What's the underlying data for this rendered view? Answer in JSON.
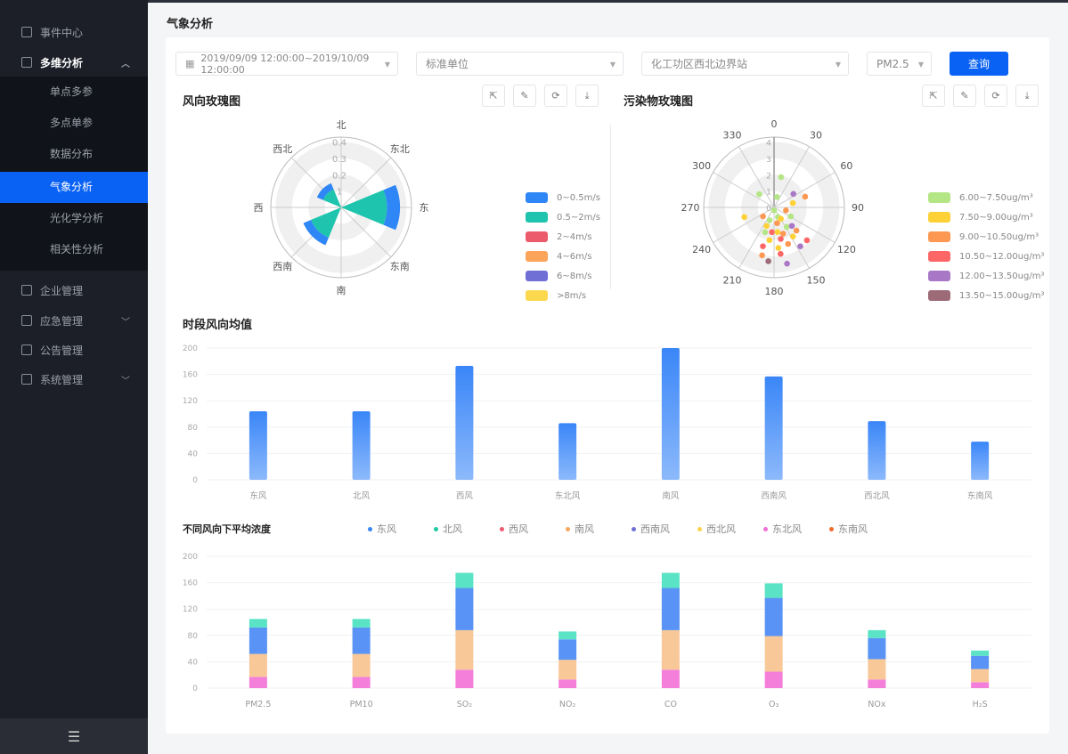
{
  "sidebar": {
    "items": [
      {
        "label": "事件中心",
        "icon": "document-icon"
      },
      {
        "label": "多维分析",
        "icon": "monitor-icon",
        "expanded": true
      }
    ],
    "submenu": [
      {
        "label": "单点多参"
      },
      {
        "label": "多点单参"
      },
      {
        "label": "数据分布"
      },
      {
        "label": "气象分析",
        "active": true
      },
      {
        "label": "光化学分析"
      },
      {
        "label": "相关性分析"
      }
    ],
    "items2": [
      {
        "label": "企业管理",
        "icon": "building-icon"
      },
      {
        "label": "应急管理",
        "icon": "database-icon",
        "chevron": true
      },
      {
        "label": "公告管理",
        "icon": "notice-icon"
      },
      {
        "label": "系统管理",
        "icon": "grid-icon",
        "chevron": true
      }
    ],
    "collapse_icon": "menu-fold-icon"
  },
  "page": {
    "title": "气象分析"
  },
  "filters": {
    "date_range": "2019/09/09 12:00:00~2019/10/09 12:00:00",
    "unit": "标准单位",
    "station": "化工功区西北边界站",
    "pollutant": "PM2.5",
    "query_label": "查询"
  },
  "colors": {
    "accent": "#0a62f5",
    "sidebar": "#1c1f27"
  },
  "toolbar_icons": [
    "external-link-icon",
    "edit-icon",
    "refresh-icon",
    "download-icon"
  ],
  "chart_data": [
    {
      "type": "polar-bar",
      "title": "风向玫瑰图",
      "directions": [
        "北",
        "东北",
        "东",
        "东南",
        "南",
        "西南",
        "西",
        "西北"
      ],
      "radial_ticks": [
        "0.4",
        "0.3",
        "0.2",
        "1"
      ],
      "series": [
        {
          "name": "0.5~2m/s",
          "color": "#1ec4ad",
          "values": [
            0,
            0,
            0.28,
            0,
            0,
            0.2,
            0,
            0.12
          ]
        },
        {
          "name": "0~0.5m/s",
          "color": "#2f86f6",
          "values": [
            0,
            0,
            0.08,
            0,
            0,
            0.05,
            0,
            0.04
          ]
        }
      ],
      "legend": [
        {
          "name": "0~0.5m/s",
          "color": "#2f86f6"
        },
        {
          "name": "0.5~2m/s",
          "color": "#1ec4ad"
        },
        {
          "name": "2~4m/s",
          "color": "#ec5b6b"
        },
        {
          "name": "4~6m/s",
          "color": "#fba45a"
        },
        {
          "name": "6~8m/s",
          "color": "#6f6fd5"
        },
        {
          "name": ">8m/s",
          "color": "#fbd84e"
        }
      ]
    },
    {
      "type": "polar-scatter",
      "title": "污染物玫瑰图",
      "angle_ticks": [
        "0",
        "30",
        "60",
        "90",
        "120",
        "150",
        "180",
        "210",
        "240",
        "270",
        "300",
        "330"
      ],
      "radial_ticks": [
        "0",
        "1",
        "2",
        "3",
        "4"
      ],
      "legend": [
        {
          "name": "6.00~7.50ug/m³",
          "color": "#b5e685"
        },
        {
          "name": "7.50~9.00ug/m³",
          "color": "#fed136"
        },
        {
          "name": "9.00~10.50ug/m³",
          "color": "#fd9852"
        },
        {
          "name": "10.50~12.00ug/m³",
          "color": "#fd6666"
        },
        {
          "name": "12.00~13.50ug/m³",
          "color": "#a878c6"
        },
        {
          "name": "13.50~15.00ug/m³",
          "color": "#9c6b77"
        }
      ],
      "points": [
        [
          13,
          1.9,
          0
        ],
        [
          312,
          1.22,
          0
        ],
        [
          16,
          0.66,
          0
        ],
        [
          55,
          1.44,
          4
        ],
        [
          71,
          2.01,
          2
        ],
        [
          77,
          1.18,
          1
        ],
        [
          180,
          0.18,
          0
        ],
        [
          104,
          0.75,
          2
        ],
        [
          252,
          1.91,
          1
        ],
        [
          231,
          0.87,
          2
        ],
        [
          158,
          0.63,
          0
        ],
        [
          149,
          0.81,
          1
        ],
        [
          118,
          1.16,
          0
        ],
        [
          199,
          0.83,
          0
        ],
        [
          169,
          0.98,
          2
        ],
        [
          202,
          1.22,
          1
        ],
        [
          147,
          1.42,
          0
        ],
        [
          136,
          1.57,
          4
        ],
        [
          200,
          1.61,
          0
        ],
        [
          185,
          1.52,
          3
        ],
        [
          172,
          1.52,
          1
        ],
        [
          161,
          1.7,
          2
        ],
        [
          136,
          1.97,
          2
        ],
        [
          147,
          2.12,
          1
        ],
        [
          188,
          2.02,
          1
        ],
        [
          168,
          1.97,
          3
        ],
        [
          135,
          2.84,
          3
        ],
        [
          159,
          2.39,
          2
        ],
        [
          146,
          2.87,
          4
        ],
        [
          196,
          2.47,
          3
        ],
        [
          174,
          2.49,
          1
        ],
        [
          194,
          3.02,
          2
        ],
        [
          172,
          2.87,
          3
        ],
        [
          186,
          3.31,
          5
        ],
        [
          167,
          3.53,
          4
        ]
      ]
    },
    {
      "type": "bar",
      "title": "时段风向均值",
      "categories": [
        "东风",
        "北风",
        "西风",
        "东北风",
        "南风",
        "西南风",
        "西北风",
        "东南风"
      ],
      "values": [
        104,
        104,
        173,
        86,
        200,
        157,
        89,
        58
      ],
      "ylim": [
        0,
        200
      ],
      "yticks": [
        "0",
        "40",
        "80",
        "120",
        "160",
        "200"
      ],
      "color": "#3a86f8"
    },
    {
      "type": "stacked-bar",
      "title": "不同风向下平均浓度",
      "categories": [
        "PM2.5",
        "PM10",
        "SO₂",
        "NO₂",
        "CO",
        "O₃",
        "NOx",
        "H₂S"
      ],
      "ylim": [
        0,
        200
      ],
      "yticks": [
        "0",
        "40",
        "80",
        "120",
        "160",
        "200"
      ],
      "legend": [
        {
          "name": "东风",
          "color": "#3a86f8"
        },
        {
          "name": "北风",
          "color": "#20c9a6"
        },
        {
          "name": "西风",
          "color": "#ef5a6f"
        },
        {
          "name": "南风",
          "color": "#f9a55a"
        },
        {
          "name": "西南风",
          "color": "#6f6fd8"
        },
        {
          "name": "西北风",
          "color": "#fcd34d"
        },
        {
          "name": "东北风",
          "color": "#f06fd5"
        },
        {
          "name": "东南风",
          "color": "#f26b2c"
        }
      ],
      "series": [
        {
          "name": "东北风",
          "color": "#f47fda",
          "values": [
            17,
            17,
            28,
            13,
            28,
            25,
            13,
            9
          ]
        },
        {
          "name": "南风",
          "color": "#f9c898",
          "values": [
            35,
            35,
            60,
            30,
            60,
            54,
            31,
            20
          ]
        },
        {
          "name": "东风",
          "color": "#5893f5",
          "values": [
            40,
            40,
            64,
            31,
            64,
            58,
            32,
            20
          ]
        },
        {
          "name": "北风",
          "color": "#5ae3c4",
          "values": [
            13,
            13,
            23,
            12,
            23,
            22,
            12,
            8
          ]
        }
      ]
    }
  ]
}
